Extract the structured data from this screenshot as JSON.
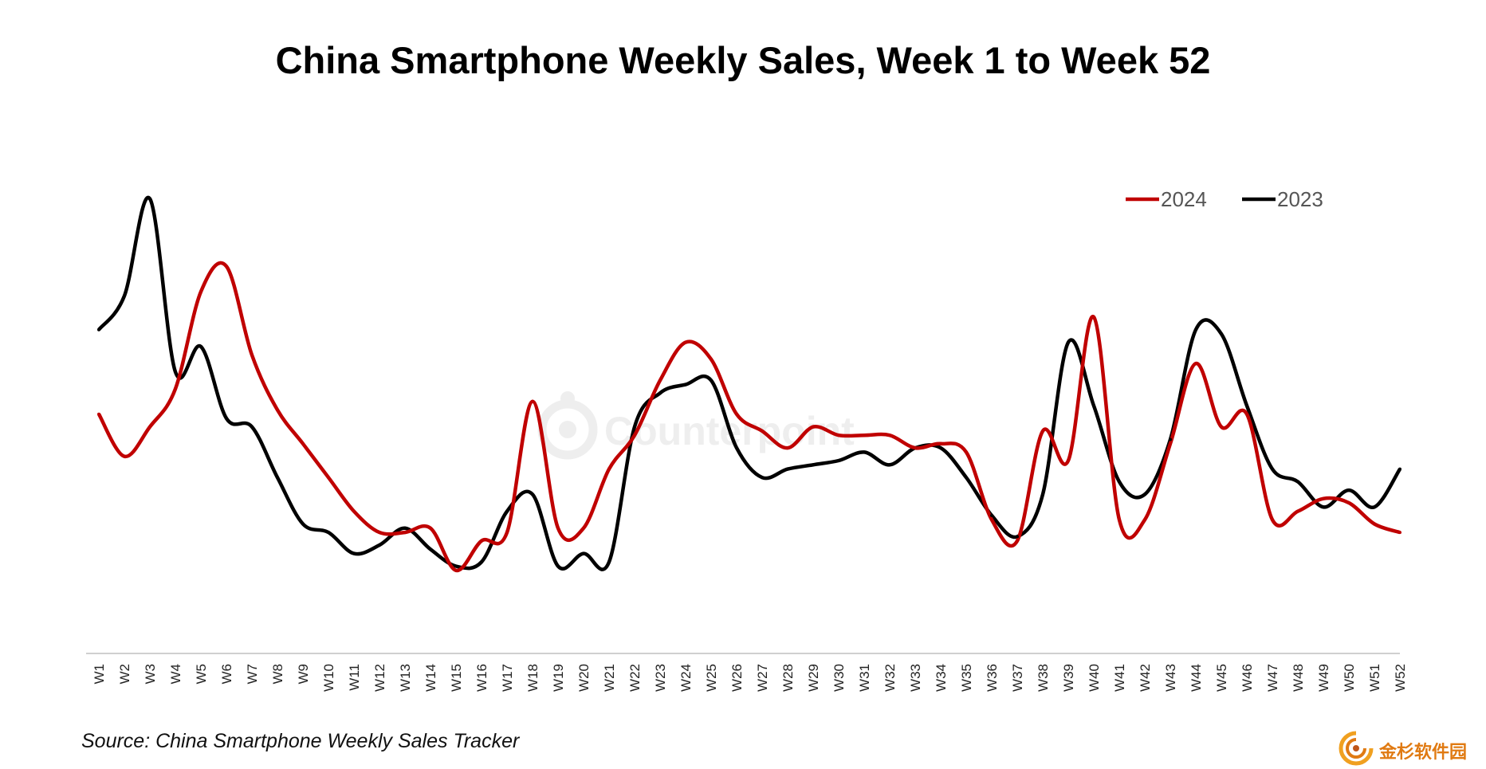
{
  "chart_data": {
    "type": "line",
    "title": "China Smartphone Weekly Sales, Week 1 to Week 52",
    "xlabel": "",
    "ylabel": "",
    "grid": false,
    "legend_position": "top-right",
    "x": [
      "W1",
      "W2",
      "W3",
      "W4",
      "W5",
      "W6",
      "W7",
      "W8",
      "W9",
      "W10",
      "W11",
      "W12",
      "W13",
      "W14",
      "W15",
      "W16",
      "W17",
      "W18",
      "W19",
      "W20",
      "W21",
      "W22",
      "W23",
      "W24",
      "W25",
      "W26",
      "W27",
      "W28",
      "W29",
      "W30",
      "W31",
      "W32",
      "W33",
      "W34",
      "W35",
      "W36",
      "W37",
      "W38",
      "W39",
      "W40",
      "W41",
      "W42",
      "W43",
      "W44",
      "W45",
      "W46",
      "W47",
      "W48",
      "W49",
      "W50",
      "W51",
      "W52"
    ],
    "ylim": [
      0,
      100
    ],
    "series": [
      {
        "name": "2024",
        "color": "#c00000",
        "values": [
          51,
          41,
          48,
          57,
          80,
          86,
          65,
          52,
          44,
          36,
          28,
          23,
          23,
          24,
          14,
          21,
          23,
          54,
          24,
          24,
          38,
          46,
          59,
          68,
          64,
          51,
          47,
          43,
          48,
          46,
          46,
          46,
          43,
          44,
          42,
          26,
          21,
          47,
          40,
          74,
          26,
          26,
          44,
          63,
          48,
          51,
          26,
          28,
          31,
          30,
          25,
          23
        ]
      },
      {
        "name": "2023",
        "color": "#000000",
        "values": [
          71,
          79,
          102,
          61,
          67,
          50,
          48,
          36,
          25,
          23,
          18,
          20,
          24,
          19,
          15,
          16,
          28,
          32,
          15,
          18,
          16,
          48,
          56,
          58,
          59,
          43,
          36,
          38,
          39,
          40,
          42,
          39,
          43,
          43,
          36,
          27,
          22,
          32,
          68,
          53,
          35,
          32,
          45,
          71,
          70,
          53,
          38,
          35,
          29,
          33,
          29,
          38
        ]
      }
    ]
  },
  "watermark": "Counterpoint",
  "source": "Source: China Smartphone Weekly Sales Tracker",
  "logo": {
    "text": "金杉软件园",
    "color": "#e07a12"
  }
}
